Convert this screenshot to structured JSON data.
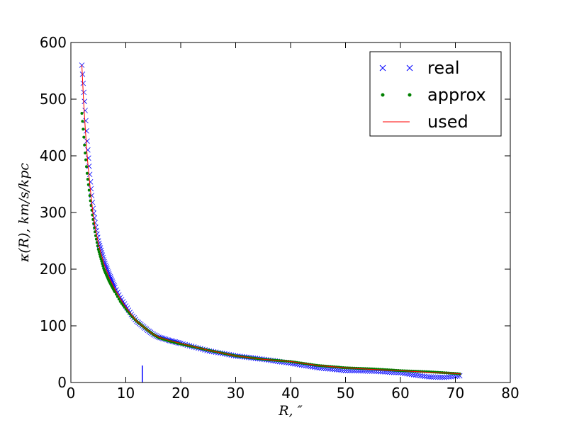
{
  "chart_data": {
    "type": "line",
    "title": "",
    "xlabel": "R, ″",
    "ylabel": "κ(R), km/s/kpc",
    "xlim": [
      0,
      80
    ],
    "ylim": [
      0,
      600
    ],
    "xticks": [
      0,
      10,
      20,
      30,
      40,
      50,
      60,
      70,
      80
    ],
    "yticks": [
      0,
      100,
      200,
      300,
      400,
      500,
      600
    ],
    "grid": false,
    "legend_position": "top-right",
    "colors": {
      "real": "#0000ff",
      "approx": "#008000",
      "used": "#ff0000",
      "marker": "#0000ff"
    },
    "marker_line": {
      "x": 13,
      "y": [
        0,
        30
      ]
    },
    "series": [
      {
        "name": "real",
        "style": "x-markers",
        "x": [
          2.0,
          2.3,
          2.6,
          3.0,
          3.5,
          4.0,
          4.5,
          5.0,
          6.0,
          7.0,
          8.0,
          9.0,
          10.0,
          11.0,
          12.0,
          13.0,
          14.0,
          15.0,
          16.0,
          18.0,
          20.0,
          25.0,
          30.0,
          35.0,
          40.0,
          45.0,
          50.0,
          55.0,
          60.0,
          65.0,
          68.0,
          71.0
        ],
        "y": [
          560,
          520,
          480,
          420,
          360,
          310,
          275,
          250,
          215,
          190,
          168,
          150,
          135,
          120,
          108,
          100,
          92,
          85,
          80,
          74,
          69,
          56,
          47,
          41,
          34,
          26,
          21,
          20,
          17,
          10,
          9,
          12
        ]
      },
      {
        "name": "approx",
        "style": "dot-markers",
        "x": [
          2.0,
          2.3,
          2.6,
          3.0,
          3.5,
          4.0,
          4.5,
          5.0,
          6.0,
          7.0,
          8.0,
          9.0,
          10.0,
          11.0,
          12.0,
          13.0,
          14.0,
          15.0,
          16.0,
          18.0,
          20.0,
          25.0,
          30.0,
          35.0,
          40.0,
          45.0,
          50.0,
          55.0,
          60.0,
          65.0,
          70.0,
          71.0
        ],
        "y": [
          475,
          440,
          405,
          365,
          325,
          290,
          260,
          235,
          200,
          178,
          160,
          143,
          130,
          118,
          108,
          100,
          92,
          85,
          79,
          73,
          68,
          57,
          47,
          41,
          37,
          30,
          26,
          24,
          21,
          19,
          16,
          15
        ]
      },
      {
        "name": "used",
        "style": "line",
        "x": [
          2.0,
          2.3,
          2.6,
          3.0,
          3.5,
          4.0,
          4.5,
          5.0,
          6.0,
          7.0,
          8.0,
          9.0,
          10.0,
          11.0,
          12.0,
          13.0,
          14.0,
          15.0,
          16.0,
          18.0,
          20.0,
          25.0,
          30.0,
          35.0,
          40.0,
          45.0,
          50.0,
          55.0,
          60.0,
          65.0,
          70.0,
          71.0
        ],
        "y": [
          560,
          500,
          450,
          395,
          345,
          300,
          270,
          245,
          210,
          185,
          165,
          148,
          133,
          120,
          108,
          100,
          92,
          85,
          80,
          74,
          69,
          57,
          47,
          41,
          37,
          30,
          26,
          23,
          21,
          18,
          16,
          15
        ]
      }
    ]
  }
}
